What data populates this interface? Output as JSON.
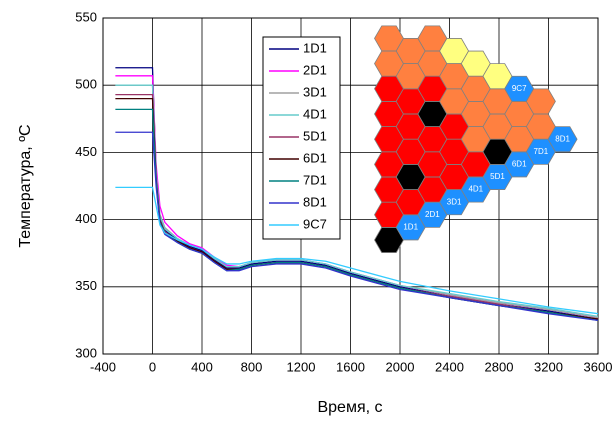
{
  "chart_data": {
    "type": "line",
    "x_label": "Время, с",
    "y_label": "Температура, ºС",
    "x": [
      -300,
      -5,
      0,
      30,
      60,
      100,
      200,
      300,
      400,
      500,
      600,
      700,
      800,
      1000,
      1200,
      1400,
      1600,
      2000,
      2400,
      2800,
      3200,
      3600
    ],
    "series": [
      {
        "name": "1D1",
        "color": "#000080",
        "values": [
          513,
          513,
          513,
          432,
          402,
          392,
          385,
          380,
          377,
          370,
          364,
          364,
          367,
          369,
          369,
          366,
          360,
          350,
          343,
          337,
          332,
          326
        ]
      },
      {
        "name": "2D1",
        "color": "#ff00ff",
        "values": [
          507,
          507,
          507,
          440,
          410,
          398,
          388,
          382,
          379,
          372,
          366,
          365,
          368,
          370,
          370,
          367,
          361,
          351,
          344,
          338,
          333,
          327
        ]
      },
      {
        "name": "3D1",
        "color": "#a0a0a0",
        "values": [
          500,
          500,
          500,
          434,
          404,
          394,
          386,
          381,
          378,
          371,
          365,
          365,
          368,
          370,
          370,
          367,
          361,
          351,
          344,
          338,
          333,
          327
        ]
      },
      {
        "name": "4D1",
        "color": "#66cccc",
        "values": [
          500,
          500,
          500,
          433,
          403,
          393,
          386,
          381,
          378,
          371,
          365,
          365,
          368,
          370,
          370,
          367,
          361,
          351,
          345,
          339,
          334,
          328
        ]
      },
      {
        "name": "5D1",
        "color": "#993366",
        "values": [
          493,
          493,
          493,
          430,
          400,
          391,
          384,
          379,
          376,
          369,
          363,
          363,
          366,
          368,
          368,
          365,
          359,
          349,
          343,
          337,
          331,
          326
        ]
      },
      {
        "name": "6D1",
        "color": "#400000",
        "values": [
          490,
          490,
          490,
          429,
          399,
          390,
          384,
          379,
          376,
          369,
          363,
          363,
          366,
          368,
          368,
          365,
          359,
          349,
          342,
          336,
          331,
          326
        ]
      },
      {
        "name": "7D1",
        "color": "#008080",
        "values": [
          482,
          482,
          482,
          427,
          398,
          390,
          383,
          378,
          375,
          368,
          362,
          363,
          366,
          368,
          368,
          365,
          359,
          349,
          342,
          336,
          331,
          325
        ]
      },
      {
        "name": "8D1",
        "color": "#3333cc",
        "values": [
          465,
          465,
          465,
          424,
          397,
          389,
          383,
          378,
          375,
          368,
          362,
          362,
          365,
          367,
          367,
          364,
          358,
          348,
          342,
          336,
          330,
          325
        ]
      },
      {
        "name": "9C7",
        "color": "#33ccff",
        "values": [
          424,
          424,
          424,
          410,
          396,
          390,
          385,
          381,
          378,
          372,
          367,
          367,
          369,
          371,
          371,
          369,
          364,
          354,
          347,
          341,
          335,
          330
        ]
      }
    ],
    "xlim": [
      -400,
      3600
    ],
    "xticks": [
      -400,
      0,
      400,
      800,
      1200,
      1600,
      2000,
      2400,
      2800,
      3200,
      3600
    ],
    "ylim": [
      300,
      550
    ],
    "yticks": [
      300,
      350,
      400,
      450,
      500,
      550
    ],
    "grid": true,
    "legend": "upper center",
    "inset_labels": [
      "1D1",
      "2D1",
      "3D1",
      "4D1",
      "5D1",
      "6D1",
      "7D1",
      "8D1",
      "9C7"
    ]
  }
}
